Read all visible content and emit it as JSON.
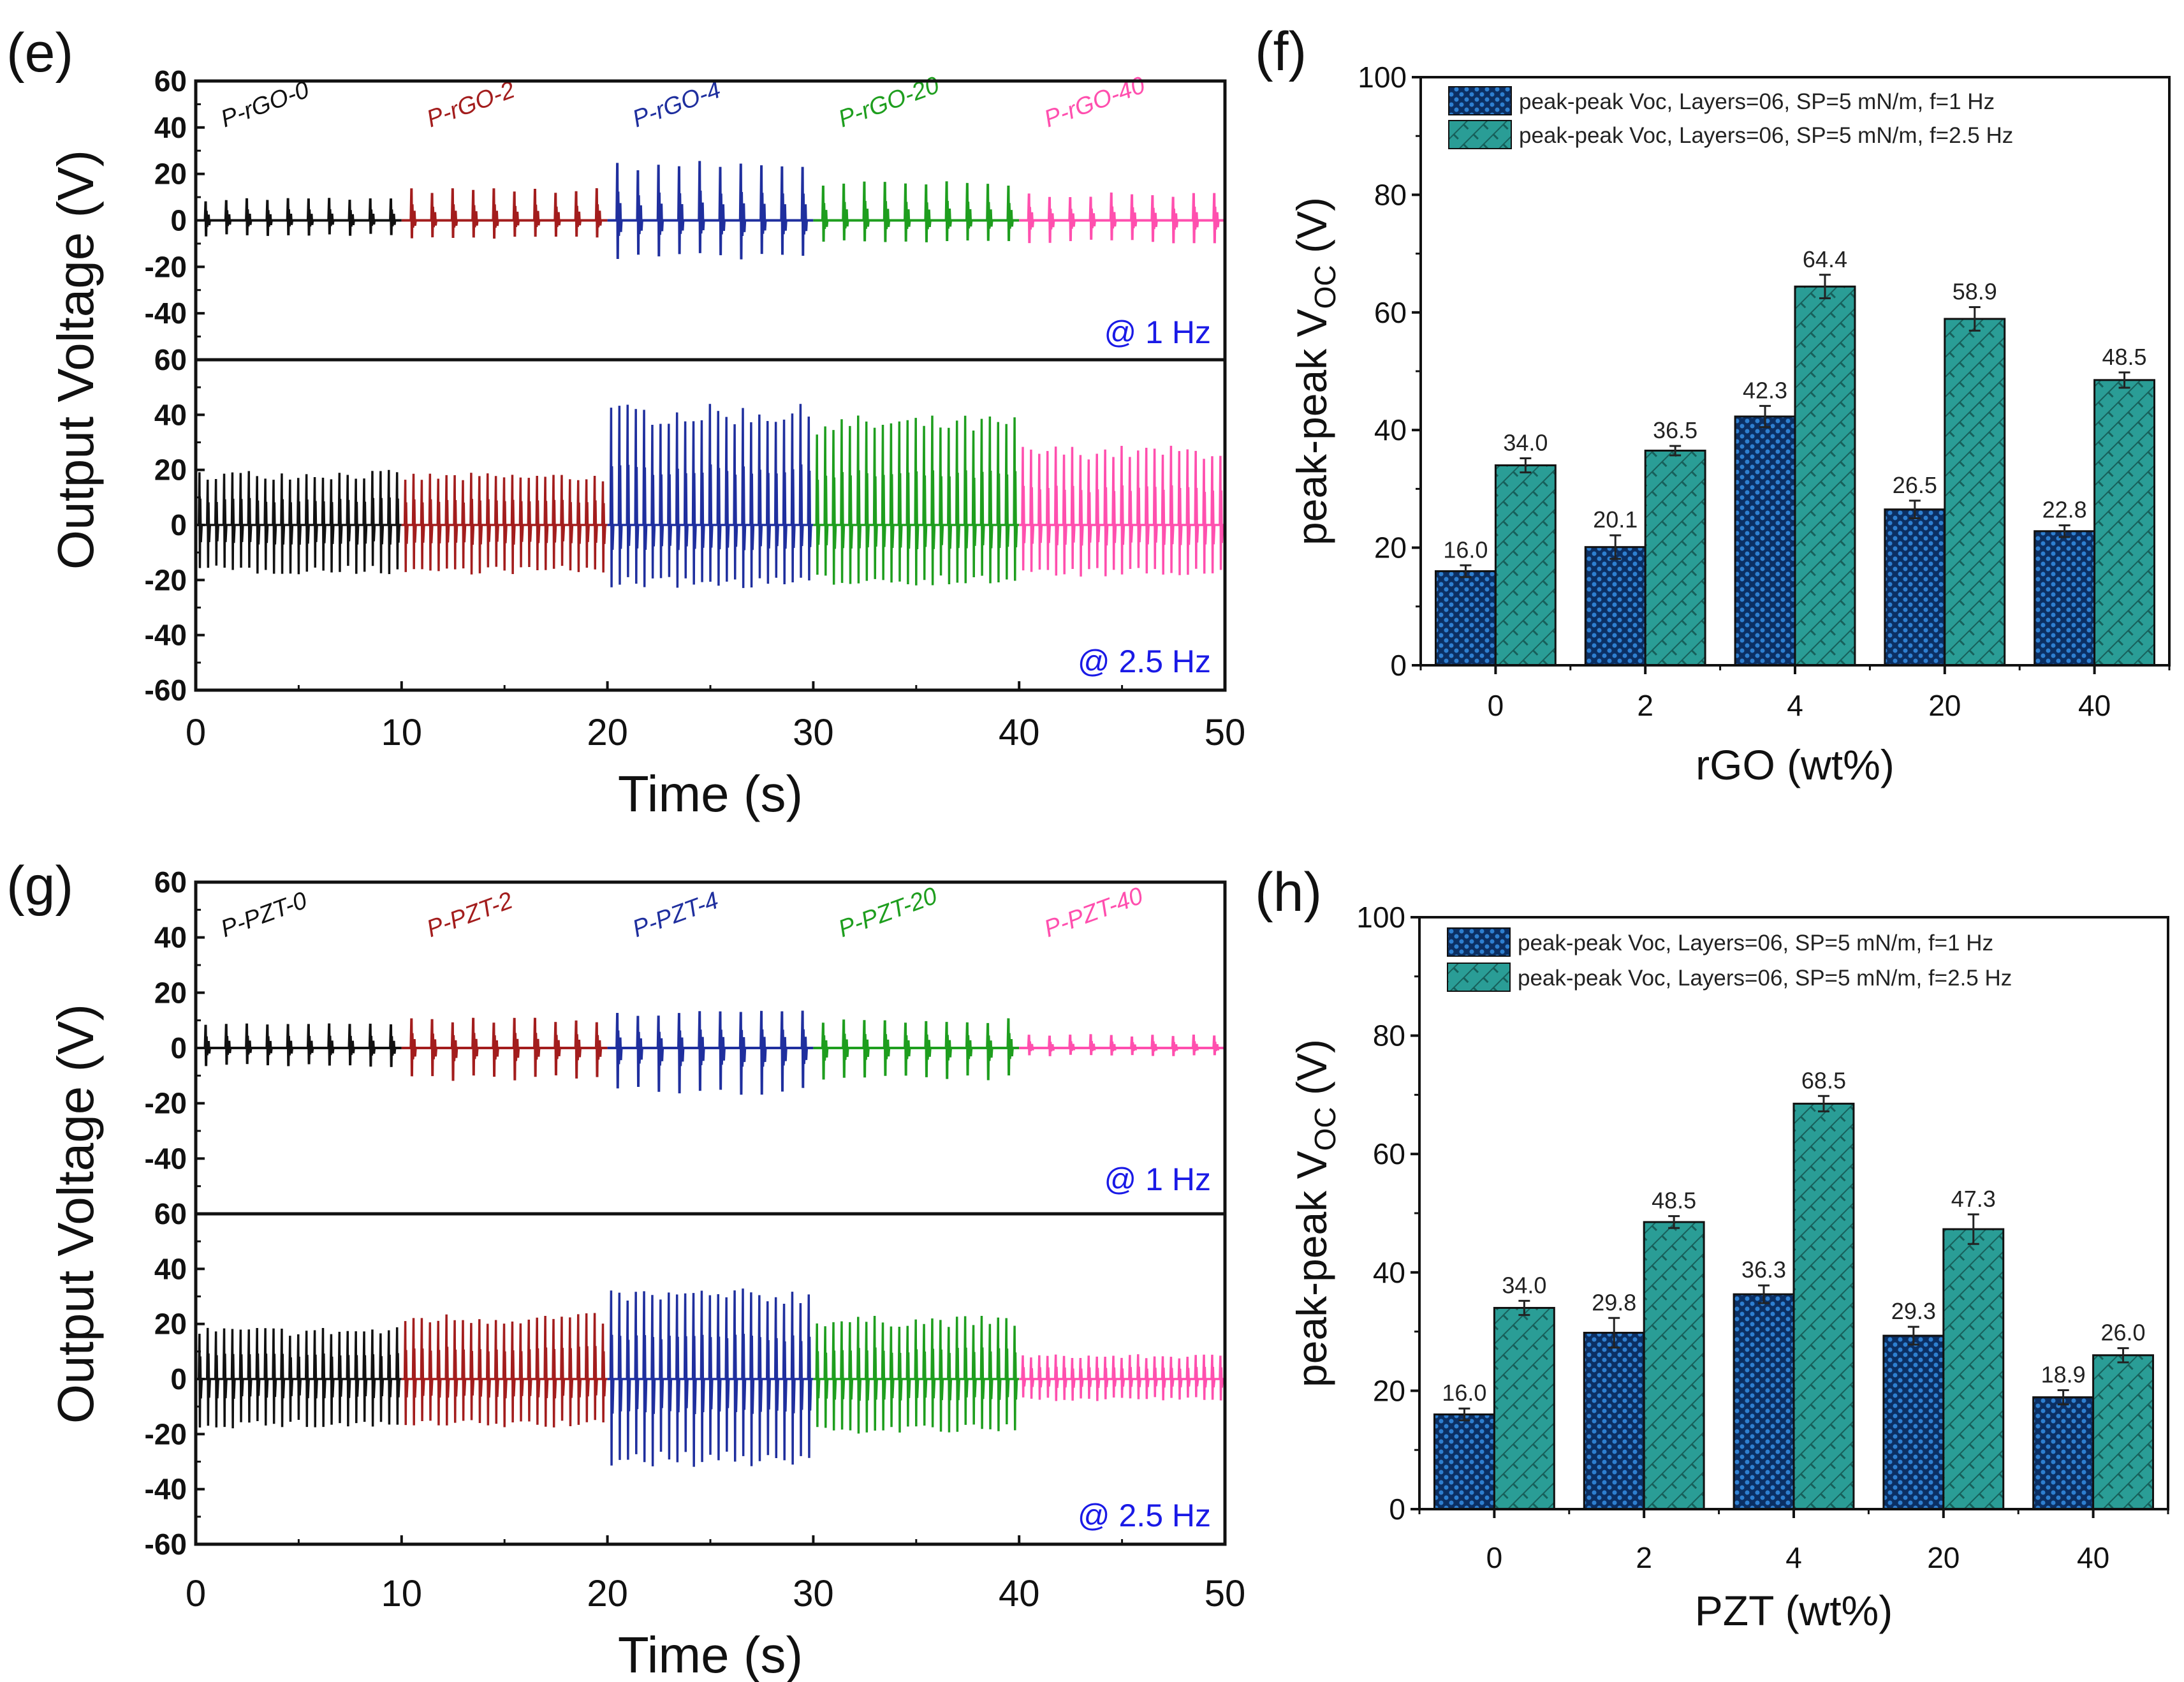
{
  "chart_data": [
    {
      "panel": "(e)",
      "type": "line",
      "xlabel": "Time (s)",
      "ylabel": "Output Voltage (V)",
      "xlim": [
        0,
        50
      ],
      "xticks": [
        0,
        10,
        20,
        30,
        40,
        50
      ],
      "ylim": [
        -60,
        60
      ],
      "subplots": [
        {
          "annotation": "@ 1 Hz",
          "frequency_hz": 1,
          "yticks": [
            60,
            40,
            20,
            0,
            -20,
            -40
          ]
        },
        {
          "annotation": "@ 2.5 Hz",
          "frequency_hz": 2.5,
          "yticks": [
            60,
            40,
            20,
            0,
            -20,
            -40,
            -60
          ]
        }
      ],
      "segments": [
        {
          "name": "P-rGO-0",
          "color": "#111111",
          "t": [
            0,
            10
          ],
          "peak_1hz": [
            10,
            -7
          ],
          "peak_2_5hz": [
            20,
            -18
          ]
        },
        {
          "name": "P-rGO-2",
          "color": "#a31d1d",
          "t": [
            10,
            20
          ],
          "peak_1hz": [
            14,
            -8
          ],
          "peak_2_5hz": [
            19,
            -18
          ]
        },
        {
          "name": "P-rGO-4",
          "color": "#1f2f9e",
          "t": [
            20,
            30
          ],
          "peak_1hz": [
            26,
            -17
          ],
          "peak_2_5hz": [
            44,
            -23
          ]
        },
        {
          "name": "P-rGO-20",
          "color": "#1e9e1e",
          "t": [
            30,
            40
          ],
          "peak_1hz": [
            17,
            -10
          ],
          "peak_2_5hz": [
            40,
            -22
          ]
        },
        {
          "name": "P-rGO-40",
          "color": "#ff4fae",
          "t": [
            40,
            50
          ],
          "peak_1hz": [
            12,
            -10
          ],
          "peak_2_5hz": [
            29,
            -19
          ]
        }
      ]
    },
    {
      "panel": "(f)",
      "type": "bar",
      "xlabel": "rGO (wt%)",
      "ylabel": {
        "main": "peak-peak V",
        "sub": "OC",
        "suffix": " (V)"
      },
      "ylim": [
        0,
        100
      ],
      "yticks": [
        0,
        20,
        40,
        60,
        80,
        100
      ],
      "categories": [
        "0",
        "2",
        "4",
        "20",
        "40"
      ],
      "legend": "top-left",
      "series": [
        {
          "name": "peak-peak Voc, Layers=06, SP=5 mN/m, f=1 Hz",
          "color": "#0b2f63",
          "values": [
            16.0,
            20.1,
            42.3,
            26.5,
            22.8
          ],
          "errors": [
            1.0,
            2.0,
            1.8,
            1.5,
            1.0
          ],
          "labels": [
            "16.0",
            "20.1",
            "42.3",
            "26.5",
            "22.8"
          ]
        },
        {
          "name": "peak-peak Voc, Layers=06, SP=5 mN/m, f=2.5 Hz",
          "color": "#2a9d96",
          "values": [
            34.0,
            36.5,
            64.4,
            58.9,
            48.5
          ],
          "errors": [
            1.2,
            0.8,
            2.0,
            2.0,
            1.3
          ],
          "labels": [
            "34.0",
            "36.5",
            "64.4",
            "58.9",
            "48.5"
          ]
        }
      ]
    },
    {
      "panel": "(g)",
      "type": "line",
      "xlabel": "Time (s)",
      "ylabel": "Output Voltage (V)",
      "xlim": [
        0,
        50
      ],
      "xticks": [
        0,
        10,
        20,
        30,
        40,
        50
      ],
      "ylim": [
        -60,
        60
      ],
      "subplots": [
        {
          "annotation": "@ 1 Hz",
          "frequency_hz": 1,
          "yticks": [
            60,
            40,
            20,
            0,
            -20,
            -40
          ]
        },
        {
          "annotation": "@ 2.5 Hz",
          "frequency_hz": 2.5,
          "yticks": [
            60,
            40,
            20,
            0,
            -20,
            -40,
            -60
          ]
        }
      ],
      "segments": [
        {
          "name": "P-PZT-0",
          "color": "#111111",
          "t": [
            0,
            10
          ],
          "peak_1hz": [
            9,
            -7
          ],
          "peak_2_5hz": [
            19,
            -18
          ]
        },
        {
          "name": "P-PZT-2",
          "color": "#a31d1d",
          "t": [
            10,
            20
          ],
          "peak_1hz": [
            11,
            -12
          ],
          "peak_2_5hz": [
            24,
            -18
          ]
        },
        {
          "name": "P-PZT-4",
          "color": "#1f2f9e",
          "t": [
            20,
            30
          ],
          "peak_1hz": [
            14,
            -17
          ],
          "peak_2_5hz": [
            33,
            -32
          ]
        },
        {
          "name": "P-PZT-20",
          "color": "#1e9e1e",
          "t": [
            30,
            40
          ],
          "peak_1hz": [
            11,
            -12
          ],
          "peak_2_5hz": [
            23,
            -20
          ]
        },
        {
          "name": "P-PZT-40",
          "color": "#ff4fae",
          "t": [
            40,
            50
          ],
          "peak_1hz": [
            5,
            -3
          ],
          "peak_2_5hz": [
            9,
            -8
          ]
        }
      ]
    },
    {
      "panel": "(h)",
      "type": "bar",
      "xlabel": "PZT (wt%)",
      "ylabel": {
        "main": "peak-peak V",
        "sub": "OC",
        "suffix": " (V)"
      },
      "ylim": [
        0,
        100
      ],
      "yticks": [
        0,
        20,
        40,
        60,
        80,
        100
      ],
      "categories": [
        "0",
        "2",
        "4",
        "20",
        "40"
      ],
      "legend": "top-left",
      "series": [
        {
          "name": "peak-peak Voc, Layers=06, SP=5 mN/m, f=1 Hz",
          "color": "#0b2f63",
          "values": [
            16.0,
            29.8,
            36.3,
            29.3,
            18.9
          ],
          "errors": [
            1.0,
            2.5,
            1.5,
            1.5,
            1.2
          ],
          "labels": [
            "16.0",
            "29.8",
            "36.3",
            "29.3",
            "18.9"
          ]
        },
        {
          "name": "peak-peak Voc, Layers=06, SP=5 mN/m, f=2.5 Hz",
          "color": "#2a9d96",
          "values": [
            34.0,
            48.5,
            68.5,
            47.3,
            26.0
          ],
          "errors": [
            1.2,
            1.0,
            1.3,
            2.5,
            1.2
          ],
          "labels": [
            "34.0",
            "48.5",
            "68.5",
            "47.3",
            "26.0"
          ]
        }
      ]
    }
  ]
}
